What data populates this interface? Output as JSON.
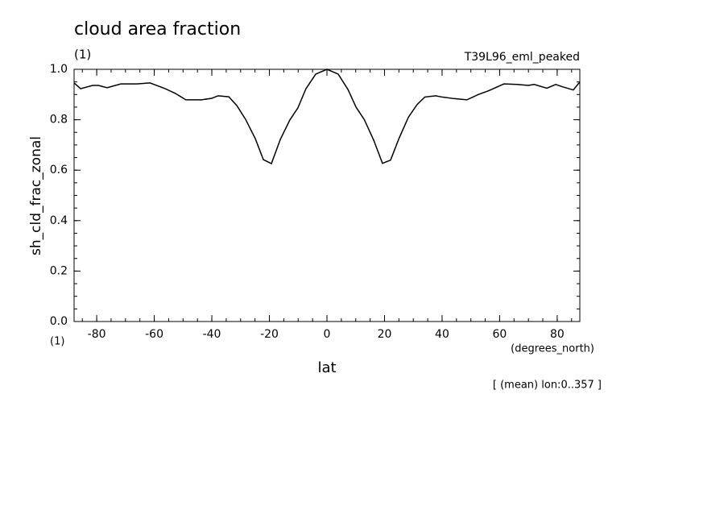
{
  "chart_data": {
    "type": "line",
    "title": "cloud area fraction",
    "title_units": "(1)",
    "dataset": "T39L96_eml_peaked",
    "ylabel": "sh_cld_frac_zonal",
    "y_units": "(1)",
    "xlabel": "lat",
    "x_units": "(degrees_north)",
    "footnote": "[ (mean) lon:0..357 ]",
    "x": [
      -87.86,
      -85.6,
      -81.4,
      -79.4,
      -76.4,
      -71.6,
      -66,
      -61.5,
      -56.2,
      -52.6,
      -49,
      -43.6,
      -40,
      -37.8,
      -34.1,
      -31.3,
      -28.3,
      -24.9,
      -22.1,
      -19.3,
      -16.2,
      -12.9,
      -10.1,
      -7.3,
      -3.9,
      0,
      3.9,
      7.3,
      10.1,
      13,
      16.2,
      19.3,
      22.1,
      25,
      28.3,
      31.3,
      34,
      37.8,
      40,
      44,
      48.6,
      52.6,
      56.2,
      61.5,
      66,
      70,
      72,
      76.4,
      79.5,
      81.5,
      85.6,
      87.86
    ],
    "series": [
      {
        "color": "#000000",
        "values": [
          0.946,
          0.923,
          0.936,
          0.936,
          0.927,
          0.942,
          0.942,
          0.946,
          0.923,
          0.904,
          0.879,
          0.879,
          0.885,
          0.895,
          0.891,
          0.856,
          0.802,
          0.725,
          0.642,
          0.626,
          0.722,
          0.799,
          0.847,
          0.923,
          0.981,
          1.0,
          0.981,
          0.92,
          0.85,
          0.8,
          0.72,
          0.627,
          0.64,
          0.725,
          0.81,
          0.86,
          0.89,
          0.895,
          0.89,
          0.884,
          0.879,
          0.9,
          0.915,
          0.942,
          0.94,
          0.936,
          0.94,
          0.925,
          0.94,
          0.932,
          0.918,
          0.95
        ]
      }
    ],
    "xlim": [
      -87.86,
      87.86
    ],
    "ylim": [
      0,
      1
    ],
    "xticks": [
      -80,
      -60,
      -40,
      -20,
      0,
      20,
      40,
      60,
      80
    ],
    "yticks": [
      {
        "value": 0,
        "label": "0.0"
      },
      0.2,
      0.4,
      0.6,
      0.8,
      {
        "value": 1,
        "label": "1.0"
      }
    ]
  }
}
